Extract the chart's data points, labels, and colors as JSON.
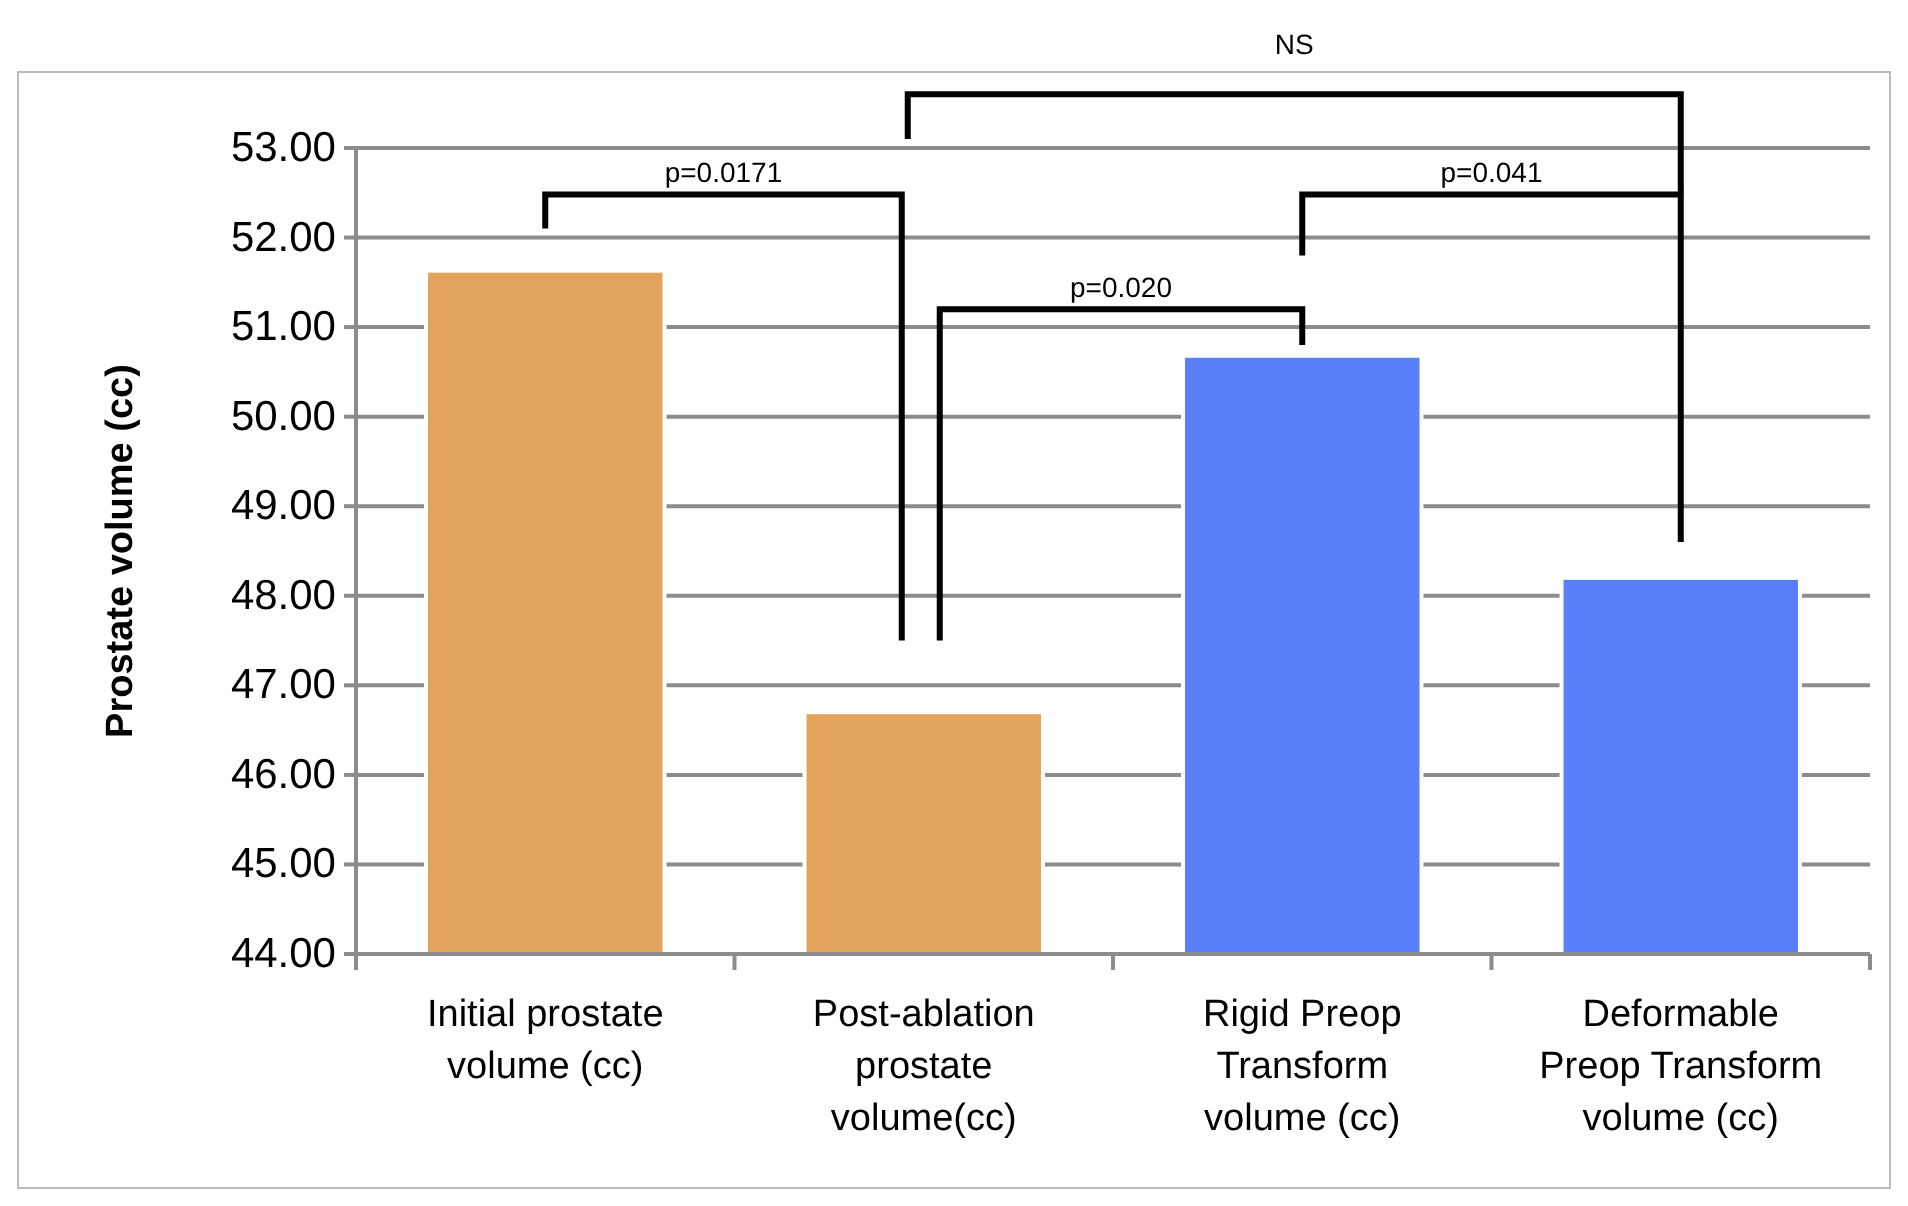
{
  "chart_data": {
    "type": "bar",
    "ylabel": "Prostate  volume (cc)",
    "categories": [
      "Initial prostate\nvolume (cc)",
      "Post-ablation\nprostate\nvolume(cc)",
      "Rigid Preop\nTransform\nvolume (cc)",
      "Deformable\nPreop Transform\nvolume (cc)"
    ],
    "values": [
      51.63,
      46.7,
      50.68,
      48.2
    ],
    "colors": [
      "#e2a45c",
      "#e2a45c",
      "#5a80f9",
      "#5a80f9"
    ],
    "ylim": [
      44,
      53
    ],
    "yticks": [
      {
        "value": 44,
        "label": "44.00"
      },
      {
        "value": 45,
        "label": "45.00"
      },
      {
        "value": 46,
        "label": "46.00"
      },
      {
        "value": 47,
        "label": "47.00"
      },
      {
        "value": 48,
        "label": "48.00"
      },
      {
        "value": 49,
        "label": "49.00"
      },
      {
        "value": 50,
        "label": "50.00"
      },
      {
        "value": 51,
        "label": "51.00"
      },
      {
        "value": 52,
        "label": "52.00"
      },
      {
        "value": 53,
        "label": "53.00"
      }
    ],
    "grid": "y",
    "annotations": [
      "p=0.0171",
      "NS",
      "p=0.020",
      "p=0.041"
    ]
  }
}
